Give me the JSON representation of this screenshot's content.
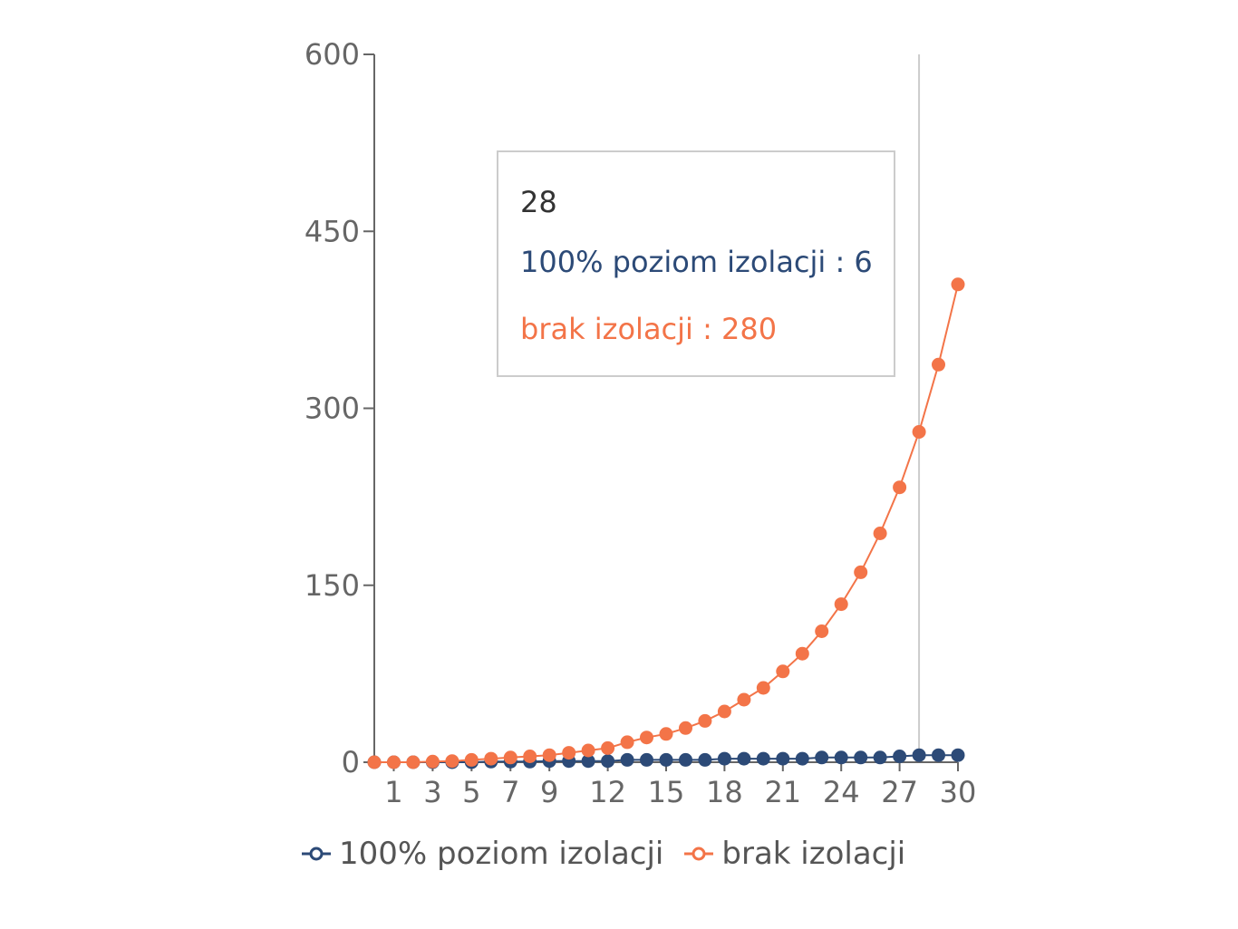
{
  "colors": {
    "series0": "#2c4a77",
    "series1": "#f37448",
    "axis": "#666666",
    "tooltip_border": "#cccccc",
    "cursor": "#cccccc"
  },
  "tooltip": {
    "label": "28",
    "rows": [
      {
        "name": "100% poziom izolacji",
        "sep": " : ",
        "value": "6"
      },
      {
        "name": "brak izolacji",
        "sep": " : ",
        "value": "280"
      }
    ]
  },
  "legend": {
    "items": [
      {
        "label": "100% poziom izolacji",
        "icon": "line-circle-marker-icon"
      },
      {
        "label": "brak izolacji",
        "icon": "line-circle-marker-icon"
      }
    ]
  },
  "chart_data": {
    "type": "line",
    "title": "",
    "xlabel": "",
    "ylabel": "",
    "x": [
      0,
      1,
      2,
      3,
      4,
      5,
      6,
      7,
      8,
      9,
      10,
      11,
      12,
      13,
      14,
      15,
      16,
      17,
      18,
      19,
      20,
      21,
      22,
      23,
      24,
      25,
      26,
      27,
      28,
      29,
      30
    ],
    "x_tick_labels": [
      "1",
      "3",
      "5",
      "7",
      "9",
      "12",
      "15",
      "18",
      "21",
      "24",
      "27",
      "30"
    ],
    "x_tick_values": [
      1,
      3,
      5,
      7,
      9,
      12,
      15,
      18,
      21,
      24,
      27,
      30
    ],
    "ylim": [
      0,
      600
    ],
    "y_ticks": [
      0,
      150,
      300,
      450,
      600
    ],
    "cursor_x": 28,
    "series": [
      {
        "name": "100% poziom izolacji",
        "values": [
          0,
          0,
          0,
          0,
          0,
          0,
          0.5,
          0.5,
          0.5,
          1,
          1,
          1,
          1,
          2,
          2,
          2,
          2,
          2,
          3,
          3,
          3,
          3,
          3,
          4,
          4,
          4,
          4,
          5,
          6,
          6,
          6
        ]
      },
      {
        "name": "brak izolacji",
        "values": [
          0,
          0,
          0,
          0.5,
          1,
          2,
          3,
          4,
          5,
          6,
          8,
          10,
          12,
          17,
          21,
          24,
          29,
          35,
          43,
          53,
          63,
          77,
          92,
          111,
          134,
          161,
          194,
          233,
          280,
          337,
          405
        ]
      }
    ]
  }
}
